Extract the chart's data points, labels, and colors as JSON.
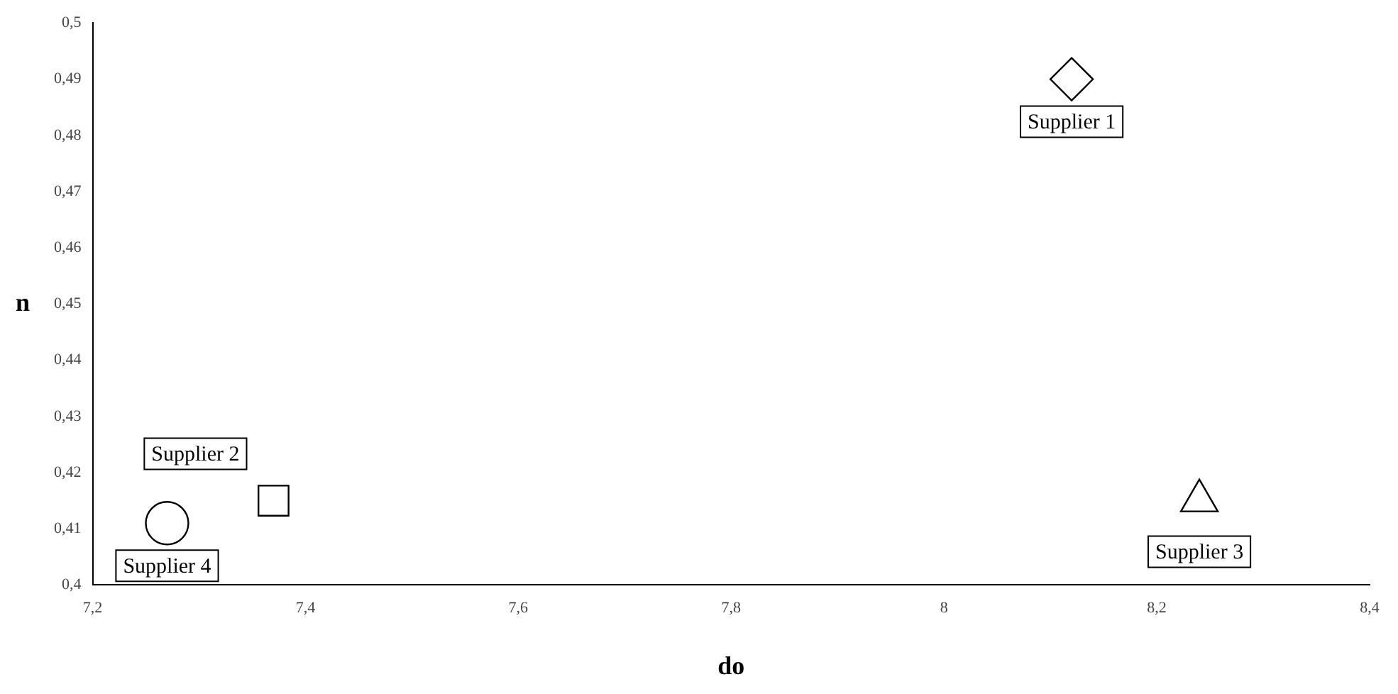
{
  "chart_data": {
    "type": "scatter",
    "xlabel": "do",
    "ylabel": "n",
    "xlim": [
      7.2,
      8.4
    ],
    "ylim": [
      0.4,
      0.5
    ],
    "xticks": [
      {
        "value": 7.2,
        "label": "7,2"
      },
      {
        "value": 7.4,
        "label": "7,4"
      },
      {
        "value": 7.6,
        "label": "7,6"
      },
      {
        "value": 7.8,
        "label": "7,8"
      },
      8,
      {
        "value": 8.2,
        "label": "8,2"
      },
      {
        "value": 8.4,
        "label": "8,4"
      }
    ],
    "yticks": [
      {
        "value": 0.4,
        "label": "0,4"
      },
      {
        "value": 0.41,
        "label": "0,41"
      },
      {
        "value": 0.42,
        "label": "0,42"
      },
      {
        "value": 0.43,
        "label": "0,43"
      },
      {
        "value": 0.44,
        "label": "0,44"
      },
      {
        "value": 0.45,
        "label": "0,45"
      },
      {
        "value": 0.46,
        "label": "0,46"
      },
      {
        "value": 0.47,
        "label": "0,47"
      },
      {
        "value": 0.48,
        "label": "0,48"
      },
      {
        "value": 0.49,
        "label": "0,49"
      },
      {
        "value": 0.5,
        "label": "0,5"
      }
    ],
    "grid": false,
    "legend": false,
    "series": [
      {
        "name": "Supplier 1",
        "color": "#000000",
        "marker": "diamond",
        "x": [
          8.12
        ],
        "values": [
          0.49
        ]
      },
      {
        "name": "Supplier 2",
        "color": "#000000",
        "marker": "square",
        "x": [
          7.37
        ],
        "values": [
          0.415
        ]
      },
      {
        "name": "Supplier 3",
        "color": "#000000",
        "marker": "triangle",
        "x": [
          8.24
        ],
        "values": [
          0.415
        ]
      },
      {
        "name": "Supplier 4",
        "color": "#000000",
        "marker": "circle",
        "x": [
          7.27
        ],
        "values": [
          0.411
        ]
      }
    ]
  }
}
